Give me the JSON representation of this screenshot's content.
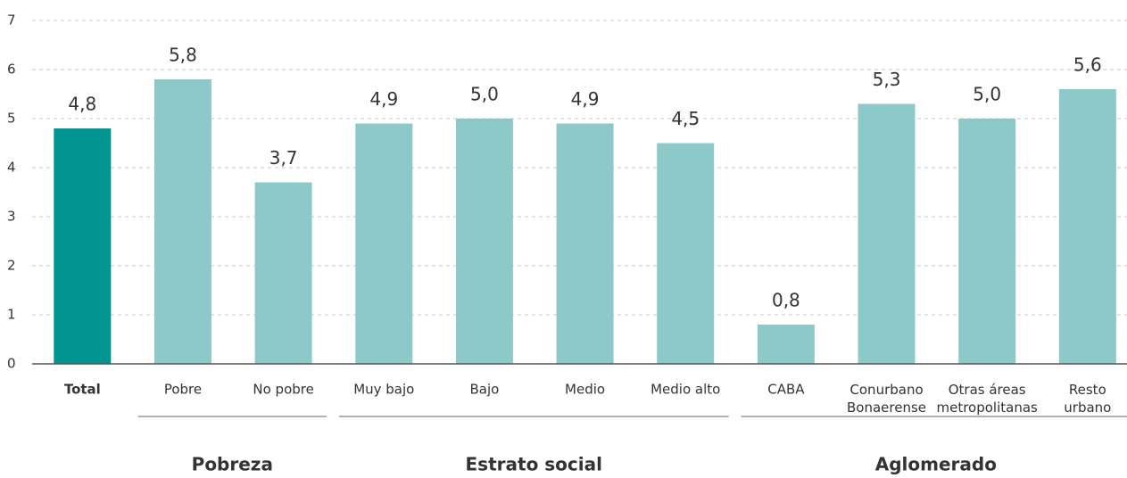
{
  "chart_data": {
    "type": "bar",
    "categories": [
      "Total",
      "Pobre",
      "No pobre",
      "Muy bajo",
      "Bajo",
      "Medio",
      "Medio alto",
      "CABA",
      "Conurbano\nBonaerense",
      "Otras áreas\nmetropolitanas",
      "Resto\nurbano"
    ],
    "values": [
      4.8,
      5.8,
      3.7,
      4.9,
      5.0,
      4.9,
      4.5,
      0.8,
      5.3,
      5.0,
      5.6
    ],
    "value_labels": [
      "4,8",
      "5,8",
      "3,7",
      "4,9",
      "5,0",
      "4,9",
      "4,5",
      "0,8",
      "5,3",
      "5,0",
      "5,6"
    ],
    "colors": [
      "#009490",
      "#8ec9c9",
      "#8ec9c9",
      "#8ec9c9",
      "#8ec9c9",
      "#8ec9c9",
      "#8ec9c9",
      "#8ec9c9",
      "#8ec9c9",
      "#8ec9c9",
      "#8ec9c9"
    ],
    "groups": [
      {
        "label": "Pobreza",
        "start": 1,
        "end": 2
      },
      {
        "label": "Estrato social",
        "start": 3,
        "end": 6
      },
      {
        "label": "Aglomerado",
        "start": 7,
        "end": 10
      }
    ],
    "ylim": [
      0,
      7
    ],
    "yticks": [
      0,
      1,
      2,
      3,
      4,
      5,
      6,
      7
    ],
    "grid": true
  }
}
